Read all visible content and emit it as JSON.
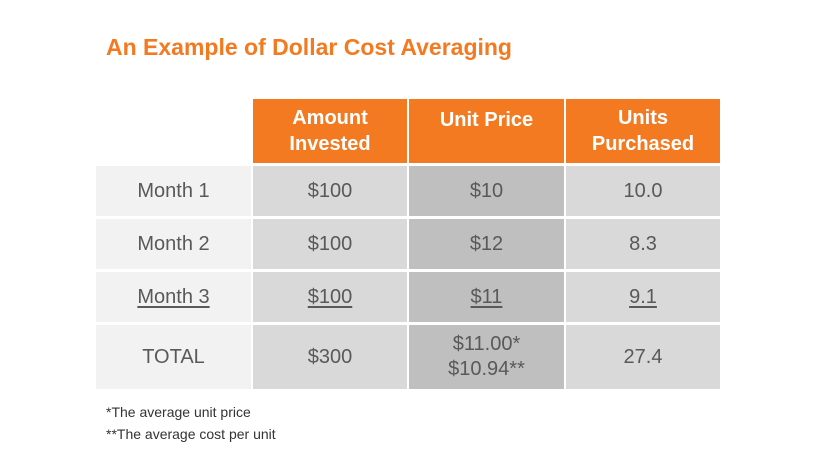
{
  "title": "An Example of Dollar Cost Averaging",
  "headers": {
    "amount_line1": "Amount",
    "amount_line2": "Invested",
    "unit_price": "Unit Price",
    "units_line1": "Units",
    "units_line2": "Purchased"
  },
  "rows": [
    {
      "label": "Month 1",
      "amount": "$100",
      "price": "$10",
      "units": "10.0"
    },
    {
      "label": "Month 2",
      "amount": "$100",
      "price": "$12",
      "units": "8.3"
    },
    {
      "label": "Month 3",
      "amount": "$100",
      "price": "$11",
      "units": "9.1"
    }
  ],
  "total": {
    "label": "TOTAL",
    "amount": "$300",
    "price_line1": "$11.00*",
    "price_line2": "$10.94**",
    "units": "27.4"
  },
  "footnotes": [
    "*The average unit price",
    "**The average cost per unit"
  ],
  "colors": {
    "accent": "#f37a20",
    "row_label_bg": "#f2f2f2",
    "cell_bg": "#d9d9d9",
    "highlight_bg": "#bfbfbf"
  }
}
